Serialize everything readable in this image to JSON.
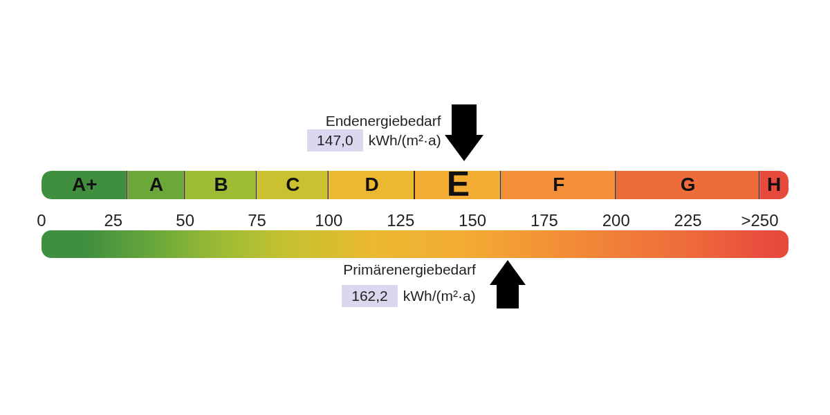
{
  "chart_data": {
    "type": "bar",
    "orientation": "horizontal",
    "stacked": true,
    "categories": [
      null
    ],
    "series": [
      {
        "name": "A+",
        "color": "#3f8f3f",
        "values": [
          30
        ]
      },
      {
        "name": "A",
        "color": "#6ba83a",
        "values": [
          20
        ]
      },
      {
        "name": "B",
        "color": "#9dbb35",
        "values": [
          25
        ]
      },
      {
        "name": "C",
        "color": "#c9c12f",
        "values": [
          25
        ]
      },
      {
        "name": "D",
        "color": "#eab831",
        "values": [
          30
        ]
      },
      {
        "name": "E",
        "color": "#f3ad32",
        "values": [
          30
        ]
      },
      {
        "name": "F",
        "color": "#f38f36",
        "values": [
          40
        ]
      },
      {
        "name": "G",
        "color": "#ee6b3b",
        "values": [
          50
        ]
      },
      {
        "name": "H",
        "color": "#e8493d",
        "values": [
          10
        ]
      }
    ],
    "xlim": [
      0,
      260
    ],
    "xticks": [
      0,
      25,
      50,
      75,
      100,
      125,
      150,
      175,
      200,
      225,
      {
        "value": 250,
        "label": ">250"
      }
    ],
    "annotations": [
      "Endenergiebedarf",
      "147,0 kWh/(m²·a)",
      "Primärenergiebedarf",
      "162,2 kWh/(m²·a)"
    ]
  }
}
